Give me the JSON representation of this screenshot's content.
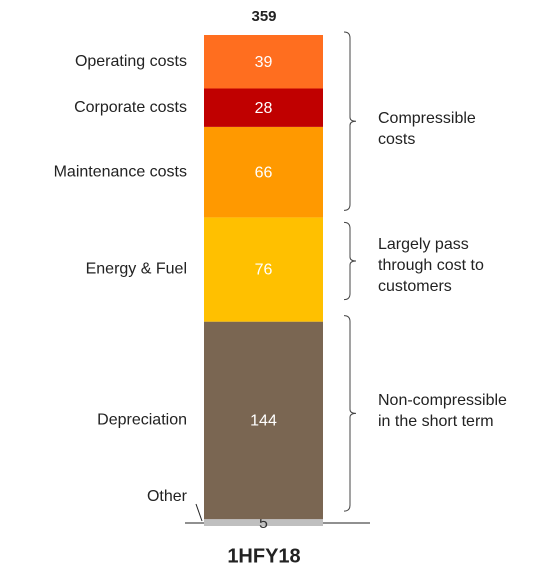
{
  "chart_data": {
    "type": "stacked-bar",
    "categories": [
      "1HFY18"
    ],
    "total": "359",
    "series": [
      {
        "name": "Other",
        "color": "#bfbfbf",
        "values": [
          5
        ]
      },
      {
        "name": "Depreciation",
        "color": "#7a6652",
        "values": [
          144
        ]
      },
      {
        "name": "Energy & Fuel",
        "color": "#ffc000",
        "values": [
          76
        ]
      },
      {
        "name": "Maintenance costs",
        "color": "#ff9900",
        "values": [
          66
        ]
      },
      {
        "name": "Corporate costs",
        "color": "#c00000",
        "values": [
          28
        ]
      },
      {
        "name": "Operating costs",
        "color": "#ff6e1f",
        "values": [
          39
        ]
      }
    ],
    "groups": [
      "Compressible costs",
      "Largely pass through cost to customers",
      "Non-compressible in the short term"
    ]
  }
}
